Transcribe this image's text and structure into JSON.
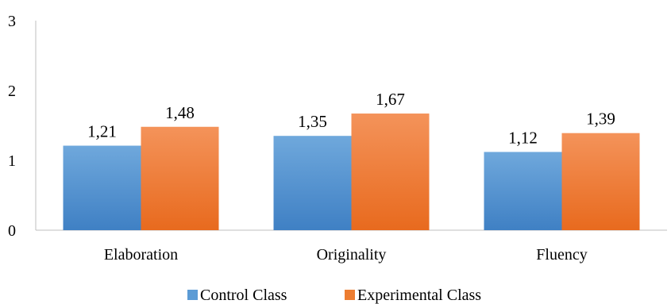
{
  "chart_data": {
    "type": "bar",
    "categories": [
      "Elaboration",
      "Originality",
      "Fluency"
    ],
    "series": [
      {
        "name": "Control Class",
        "values": [
          1.21,
          1.35,
          1.12
        ],
        "value_labels": [
          "1,21",
          "1,35",
          "1,12"
        ],
        "color": "#5B9BD5"
      },
      {
        "name": "Experimental Class",
        "values": [
          1.48,
          1.67,
          1.39
        ],
        "value_labels": [
          "1,48",
          "1,67",
          "1,39"
        ],
        "color": "#ED7D31"
      }
    ],
    "yticks": [
      0,
      1,
      2,
      3
    ],
    "ylim": [
      0,
      3
    ],
    "title": "",
    "xlabel": "",
    "ylabel": "",
    "grid": false,
    "legend_position": "bottom"
  }
}
